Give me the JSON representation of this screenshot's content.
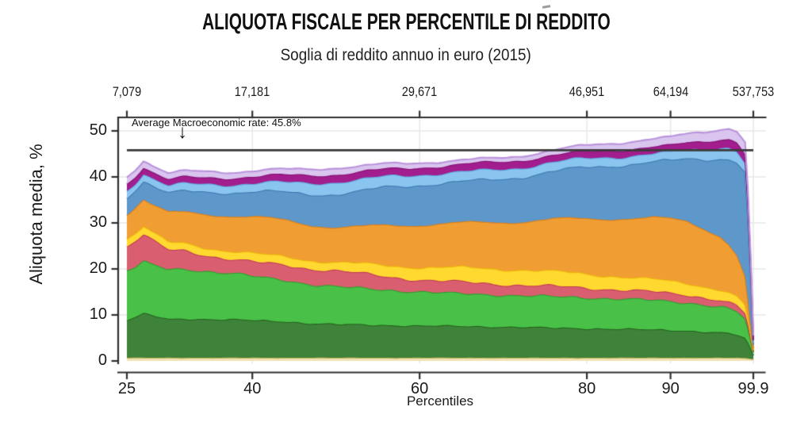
{
  "title": "ALIQUOTA FISCALE PER PERCENTILE DI REDDITO",
  "subtitle": "Soglia di reddito annuo in euro (2015)",
  "annotation": {
    "text": "Average Macroeconomic rate: 45.8%",
    "arrow_glyph": "↓",
    "value_pct": 45.8
  },
  "axes": {
    "top": {
      "ticks": [
        "7,079",
        "17,181",
        "29,671",
        "46,951",
        "64,194",
        "537,753"
      ],
      "positions_pct": [
        25,
        40,
        60,
        80,
        90,
        99.9
      ]
    },
    "bottom": {
      "label": "Percentiles",
      "ticks": [
        "25",
        "40",
        "60",
        "80",
        "90",
        "99.9"
      ],
      "positions_pct": [
        25,
        40,
        60,
        80,
        90,
        99.9
      ]
    },
    "left": {
      "label": "Aliquota media, %",
      "ticks": [
        "0",
        "10",
        "20",
        "30",
        "40",
        "50"
      ],
      "values": [
        0,
        10,
        20,
        30,
        40,
        50
      ]
    }
  },
  "colors": {
    "background": "#ffffff",
    "grid": "#e6e6e6",
    "axis": "#2f2f2f",
    "rule": "#3a3a3a",
    "text": "#1b1b1b"
  },
  "chart_data": {
    "type": "area",
    "stacked": true,
    "title": "ALIQUOTA FISCALE PER PERCENTILE DI REDDITO",
    "subtitle": "Soglia di reddito annuo in euro (2015)",
    "xlabel": "Percentiles",
    "ylabel": "Aliquota media, %",
    "x_range": [
      25,
      99.9
    ],
    "y_range": [
      0,
      52
    ],
    "grid": true,
    "y_gridlines": [
      10,
      20,
      30,
      40,
      50
    ],
    "x_gridlines_pct": [
      40,
      60,
      80,
      90,
      99.9
    ],
    "reference_line": {
      "y": 45.8,
      "label": "Average Macroeconomic rate: 45.8%"
    },
    "top_axis_income_thresholds": {
      "percentiles": [
        25,
        40,
        60,
        80,
        90,
        99.9
      ],
      "euro": [
        "7,079",
        "17,181",
        "29,671",
        "46,951",
        "64,194",
        "537,753"
      ]
    },
    "x": [
      25,
      26,
      27,
      28,
      30,
      32,
      35,
      38,
      41,
      44,
      47,
      50,
      53,
      56,
      60,
      64,
      68,
      72,
      76,
      80,
      84,
      88,
      90,
      92,
      94,
      96,
      97,
      98,
      99,
      99.5,
      99.9
    ],
    "series": [
      {
        "name": "sand-strip",
        "fill": "#efe3b4",
        "stroke": "#c9b35f",
        "wiggle": 0.04,
        "values": [
          0.7,
          0.7,
          0.7,
          0.7,
          0.7,
          0.7,
          0.7,
          0.7,
          0.7,
          0.7,
          0.7,
          0.7,
          0.7,
          0.7,
          0.7,
          0.7,
          0.7,
          0.7,
          0.7,
          0.7,
          0.7,
          0.7,
          0.7,
          0.7,
          0.7,
          0.7,
          0.7,
          0.7,
          0.6,
          0.5,
          0.4
        ]
      },
      {
        "name": "dark-green",
        "fill": "#3e8339",
        "stroke": "#26621f",
        "wiggle": 0.22,
        "values": [
          8.2,
          8.8,
          9.6,
          9.2,
          8.4,
          8.5,
          8.4,
          8.3,
          8.1,
          7.9,
          7.5,
          7.3,
          7.2,
          7.1,
          7.0,
          6.9,
          6.8,
          6.7,
          6.5,
          6.4,
          6.3,
          6.1,
          6.0,
          5.9,
          5.7,
          5.5,
          5.3,
          5.0,
          4.2,
          2.6,
          0.8
        ]
      },
      {
        "name": "green",
        "fill": "#49c149",
        "stroke": "#2d9e2d",
        "wiggle": 0.3,
        "values": [
          10.8,
          11.0,
          11.3,
          11.0,
          10.8,
          10.8,
          10.4,
          10.0,
          9.4,
          9.0,
          8.5,
          8.2,
          7.9,
          7.7,
          7.4,
          7.1,
          7.0,
          6.9,
          6.8,
          6.7,
          6.6,
          6.4,
          6.2,
          6.1,
          5.9,
          5.7,
          5.4,
          5.0,
          4.2,
          2.2,
          0.6
        ]
      },
      {
        "name": "red",
        "fill": "#d95f70",
        "stroke": "#c03a55",
        "wiggle": 0.38,
        "values": [
          5.2,
          5.6,
          5.9,
          5.3,
          4.2,
          4.0,
          3.4,
          3.0,
          3.1,
          3.3,
          3.4,
          3.4,
          3.2,
          2.9,
          2.6,
          2.5,
          2.4,
          2.3,
          2.2,
          2.1,
          2.0,
          1.8,
          1.7,
          1.7,
          1.6,
          1.5,
          1.4,
          1.3,
          1.2,
          0.7,
          0.25
        ]
      },
      {
        "name": "yellow",
        "fill": "#ffd930",
        "stroke": "#edb70a",
        "wiggle": 0.3,
        "values": [
          1.7,
          1.7,
          1.8,
          1.7,
          1.6,
          1.6,
          1.7,
          1.8,
          1.8,
          1.8,
          1.9,
          1.9,
          2.1,
          2.4,
          2.8,
          3.1,
          3.2,
          3.4,
          3.2,
          3.0,
          2.9,
          2.7,
          2.6,
          2.5,
          2.4,
          2.3,
          2.2,
          2.0,
          1.7,
          0.9,
          0.3
        ]
      },
      {
        "name": "orange",
        "fill": "#f09e33",
        "stroke": "#de7f17",
        "wiggle": 0.32,
        "values": [
          5.4,
          5.6,
          5.8,
          6.0,
          6.4,
          6.8,
          7.4,
          7.7,
          8.0,
          7.9,
          7.7,
          7.6,
          8.0,
          8.7,
          9.2,
          9.6,
          10.0,
          10.4,
          11.4,
          12.0,
          12.6,
          13.4,
          13.6,
          13.4,
          12.6,
          11.5,
          10.5,
          8.8,
          6.0,
          2.2,
          0.4
        ]
      },
      {
        "name": "steel-blue",
        "fill": "#5e97c9",
        "stroke": "#3e78b0",
        "wiggle": 0.32,
        "values": [
          3.8,
          3.9,
          4.0,
          4.1,
          4.2,
          4.5,
          4.9,
          5.2,
          5.6,
          6.1,
          6.7,
          7.2,
          7.7,
          8.3,
          8.7,
          8.9,
          9.2,
          9.7,
          10.4,
          11.2,
          11.6,
          12.2,
          12.6,
          13.6,
          15.0,
          17.0,
          18.5,
          20.5,
          23.0,
          13.0,
          0.8
        ]
      },
      {
        "name": "light-blue",
        "fill": "#89c5ef",
        "stroke": "#60a8e0",
        "wiggle": 0.22,
        "values": [
          1.5,
          1.5,
          1.6,
          1.6,
          1.6,
          1.6,
          1.7,
          1.7,
          1.9,
          2.1,
          2.4,
          2.6,
          2.5,
          2.3,
          2.2,
          2.1,
          2.1,
          2.0,
          2.0,
          1.9,
          1.8,
          1.8,
          1.8,
          1.9,
          2.1,
          2.4,
          2.5,
          2.4,
          2.0,
          1.1,
          0.3
        ]
      },
      {
        "name": "magenta",
        "fill": "#a21d8d",
        "stroke": "#831173",
        "wiggle": 0.12,
        "values": [
          1.5,
          1.5,
          1.5,
          1.4,
          1.4,
          1.4,
          1.4,
          1.5,
          1.5,
          1.6,
          1.7,
          1.7,
          1.7,
          1.6,
          1.6,
          1.6,
          1.7,
          1.6,
          1.5,
          1.5,
          1.5,
          1.5,
          1.5,
          1.6,
          1.7,
          1.8,
          1.9,
          2.0,
          2.0,
          1.7,
          0.7
        ]
      },
      {
        "name": "lavender",
        "fill": "#d9c5ee",
        "stroke": "#ba93dc",
        "wiggle": 0.12,
        "values": [
          1.4,
          1.4,
          1.4,
          1.4,
          1.3,
          1.3,
          1.3,
          1.2,
          1.2,
          1.2,
          1.3,
          1.4,
          1.2,
          1.1,
          1.0,
          0.9,
          0.8,
          0.9,
          1.1,
          1.3,
          1.5,
          1.7,
          1.8,
          1.9,
          2.0,
          2.1,
          2.2,
          2.3,
          2.5,
          2.4,
          1.0
        ]
      }
    ]
  }
}
